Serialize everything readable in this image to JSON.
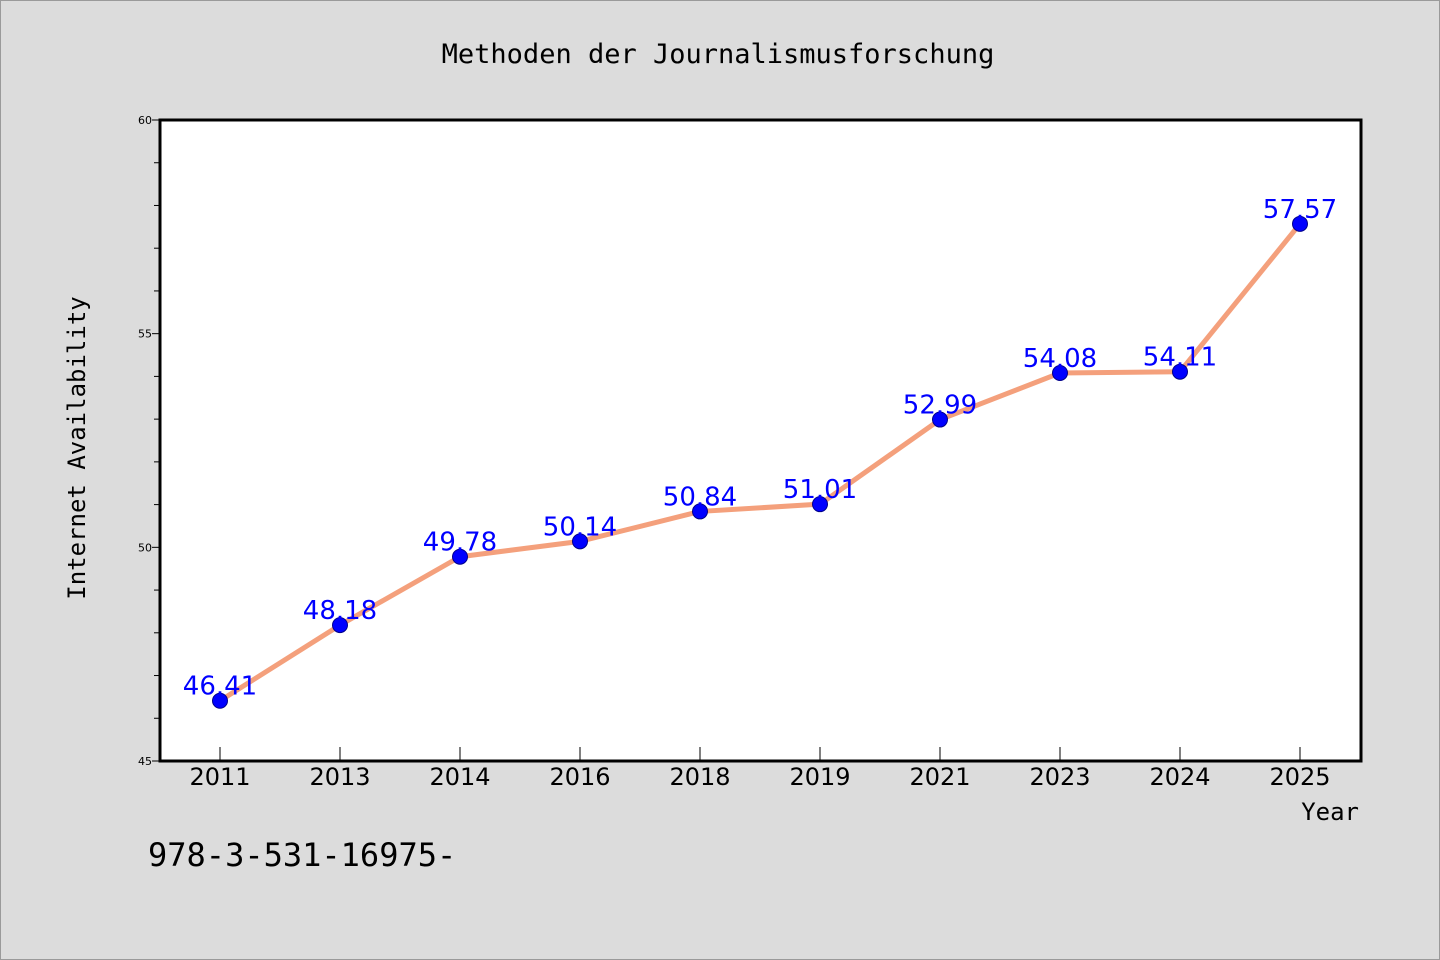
{
  "chart_data": {
    "type": "line",
    "title": "Methoden der Journalismusforschung",
    "xlabel": "Year",
    "ylabel": "Internet Availability",
    "categories": [
      "2011",
      "2013",
      "2014",
      "2016",
      "2018",
      "2019",
      "2021",
      "2023",
      "2024",
      "2025"
    ],
    "series": [
      {
        "values": [
          46.41,
          48.18,
          49.78,
          50.14,
          50.84,
          51.01,
          52.99,
          54.08,
          54.11,
          57.57
        ],
        "labels": [
          "46.41",
          "48.18",
          "49.78",
          "50.14",
          "50.84",
          "51.01",
          "52.99",
          "54.08",
          "54.11",
          "57.57"
        ]
      }
    ],
    "ylim": [
      45,
      60
    ],
    "yticks": [
      "45",
      "50",
      "55",
      "60"
    ],
    "grid": false,
    "legend": "none",
    "colors": {
      "line": "#f4a07c",
      "marker": "#0000ff",
      "marker_edge": "#00008b",
      "data_label": "#0000ff",
      "background": "#dcdcdc",
      "plot_area": "#ffffff"
    }
  },
  "footer": {
    "isbn": "978-3-531-16975-"
  }
}
